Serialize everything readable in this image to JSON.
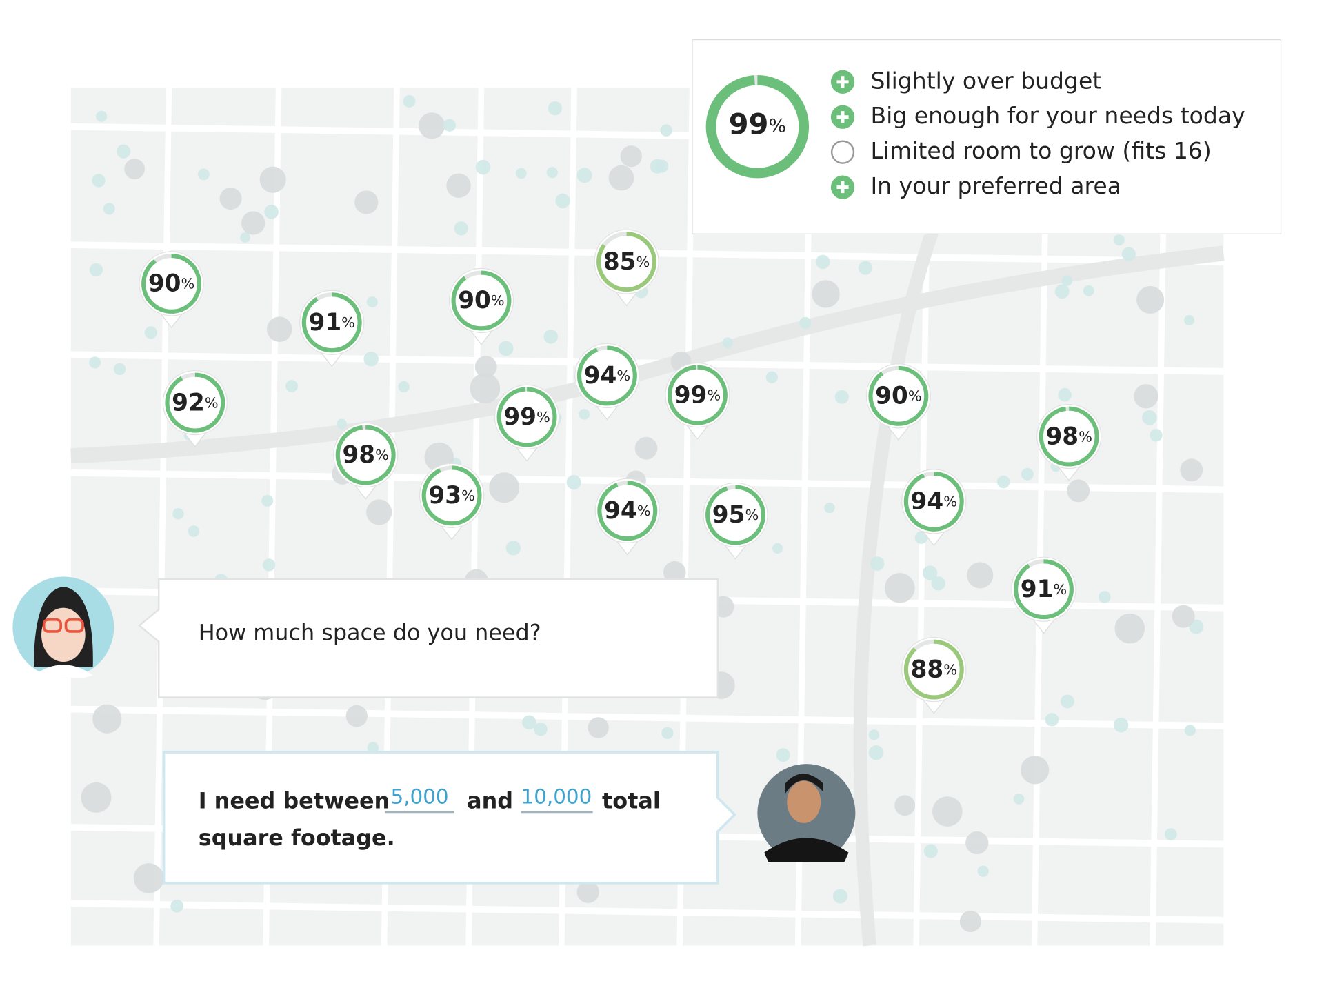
{
  "summary": {
    "score": {
      "value": 99,
      "unit": "%"
    },
    "items": [
      {
        "text": "Slightly over budget",
        "status": "plus"
      },
      {
        "text": "Big enough for your needs today",
        "status": "plus"
      },
      {
        "text": "Limited room to grow (fits 16)",
        "status": "empty"
      },
      {
        "text": "In your preferred area",
        "status": "plus"
      }
    ]
  },
  "pins": [
    {
      "value": 90,
      "unit": "%"
    },
    {
      "value": 91,
      "unit": "%"
    },
    {
      "value": 90,
      "unit": "%"
    },
    {
      "value": 85,
      "unit": "%"
    },
    {
      "value": 92,
      "unit": "%"
    },
    {
      "value": 98,
      "unit": "%"
    },
    {
      "value": 93,
      "unit": "%"
    },
    {
      "value": 99,
      "unit": "%"
    },
    {
      "value": 94,
      "unit": "%"
    },
    {
      "value": 99,
      "unit": "%"
    },
    {
      "value": 94,
      "unit": "%"
    },
    {
      "value": 95,
      "unit": "%"
    },
    {
      "value": 90,
      "unit": "%"
    },
    {
      "value": 98,
      "unit": "%"
    },
    {
      "value": 94,
      "unit": "%"
    },
    {
      "value": 91,
      "unit": "%"
    },
    {
      "value": 88,
      "unit": "%"
    }
  ],
  "chat": {
    "question": "How much space do you need?",
    "answer": {
      "before": "I need between",
      "min": "5,000",
      "middle": "and",
      "max": "10,000",
      "after": "total",
      "line2": "square footage."
    }
  }
}
